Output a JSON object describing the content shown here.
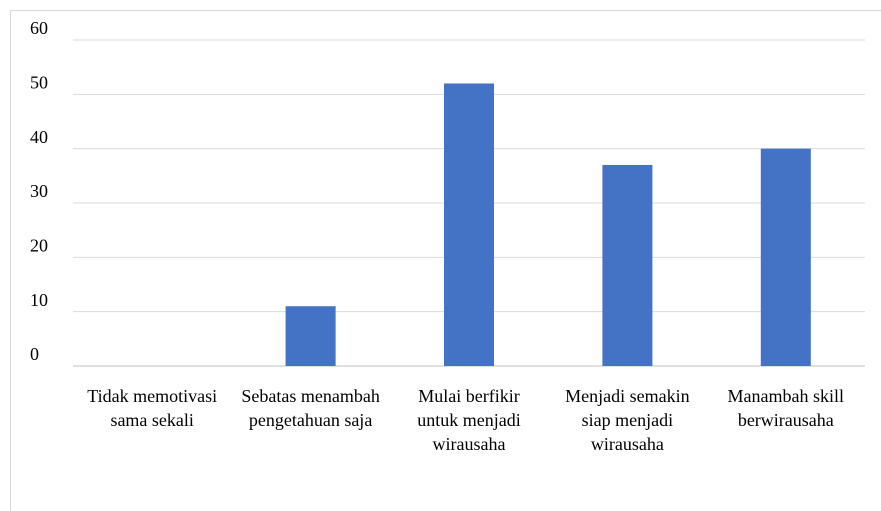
{
  "chart_data": {
    "type": "bar",
    "categories": [
      "Tidak memotivasi sama sekali",
      "Sebatas menambah pengetahuan saja",
      "Mulai berfikir untuk menjadi wirausaha",
      "Menjadi semakin siap menjadi wirausaha",
      "Manambah skill berwirausaha"
    ],
    "values": [
      0,
      11,
      52,
      37,
      40
    ],
    "color": "#4472c4",
    "ylim": [
      0,
      60
    ],
    "yticks": [
      0,
      10,
      20,
      30,
      40,
      50,
      60
    ],
    "grid": true
  }
}
